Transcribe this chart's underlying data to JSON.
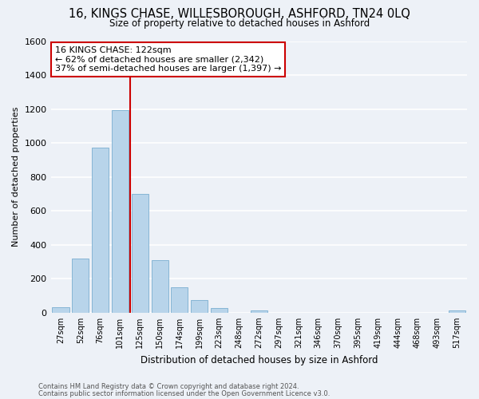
{
  "title": "16, KINGS CHASE, WILLESBOROUGH, ASHFORD, TN24 0LQ",
  "subtitle": "Size of property relative to detached houses in Ashford",
  "xlabel": "Distribution of detached houses by size in Ashford",
  "ylabel": "Number of detached properties",
  "bar_labels": [
    "27sqm",
    "52sqm",
    "76sqm",
    "101sqm",
    "125sqm",
    "150sqm",
    "174sqm",
    "199sqm",
    "223sqm",
    "248sqm",
    "272sqm",
    "297sqm",
    "321sqm",
    "346sqm",
    "370sqm",
    "395sqm",
    "419sqm",
    "444sqm",
    "468sqm",
    "493sqm",
    "517sqm"
  ],
  "bar_heights": [
    30,
    320,
    970,
    1195,
    700,
    310,
    150,
    75,
    25,
    0,
    15,
    0,
    0,
    0,
    0,
    0,
    0,
    0,
    0,
    0,
    15
  ],
  "bar_color": "#b8d4ea",
  "bar_edge_color": "#7aaed0",
  "vline_color": "#cc0000",
  "annotation_title": "16 KINGS CHASE: 122sqm",
  "annotation_line1": "← 62% of detached houses are smaller (2,342)",
  "annotation_line2": "37% of semi-detached houses are larger (1,397) →",
  "annotation_box_color": "#ffffff",
  "annotation_box_edge": "#cc0000",
  "ylim": [
    0,
    1600
  ],
  "yticks": [
    0,
    200,
    400,
    600,
    800,
    1000,
    1200,
    1400,
    1600
  ],
  "footnote1": "Contains HM Land Registry data © Crown copyright and database right 2024.",
  "footnote2": "Contains public sector information licensed under the Open Government Licence v3.0.",
  "bg_color": "#edf1f7",
  "grid_color": "#ffffff"
}
